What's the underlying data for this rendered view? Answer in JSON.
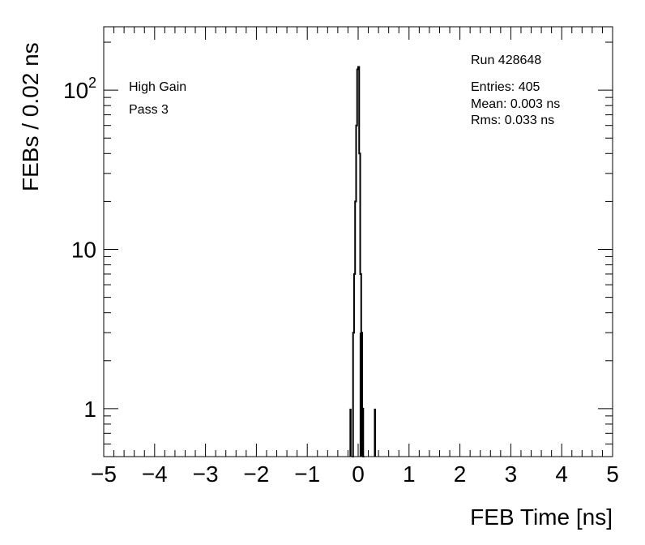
{
  "chart_data": {
    "type": "bar",
    "xlabel": "FEB Time [ns]",
    "ylabel": "FEBs / 0.02 ns",
    "xlim": [
      -5,
      5
    ],
    "ylim": [
      0.5,
      250
    ],
    "ylog": true,
    "bin_width": 0.02,
    "grid": false,
    "legend": "none",
    "x_ticks": [
      -5,
      -4,
      -3,
      -2,
      -1,
      0,
      1,
      2,
      3,
      4,
      5
    ],
    "x_tick_labels": [
      "−5",
      "−4",
      "−3",
      "−2",
      "−1",
      "0",
      "1",
      "2",
      "3",
      "4",
      "5"
    ],
    "y_ticks": [
      1,
      10,
      100
    ],
    "y_tick_labels": [
      "1",
      "10",
      "10",
      "2"
    ],
    "annotations": {
      "gain": "High Gain",
      "pass": "Pass 3",
      "run": "Run 428648",
      "entries": "Entries: 405",
      "mean": "Mean: 0.003 ns",
      "rms": "Rms: 0.033 ns"
    },
    "bins": [
      {
        "x": -0.15,
        "value": 1
      },
      {
        "x": -0.13,
        "value": 0
      },
      {
        "x": -0.11,
        "value": 0
      },
      {
        "x": -0.09,
        "value": 0
      },
      {
        "x": -0.07,
        "value": 0
      },
      {
        "x": -0.05,
        "value": 0
      },
      {
        "x": -0.03,
        "value": 0
      },
      {
        "x": -0.01,
        "value": 0
      },
      {
        "x": 0.01,
        "value": 0
      },
      {
        "x": 0.03,
        "value": 0
      },
      {
        "x": 0.05,
        "value": 3
      },
      {
        "x": 0.07,
        "value": 2
      },
      {
        "x": 0.09,
        "value": 1
      },
      {
        "x": 0.11,
        "value": 0
      },
      {
        "x": 0.13,
        "value": 0
      },
      {
        "x": 0.15,
        "value": 0
      },
      {
        "x": 0.17,
        "value": 0
      },
      {
        "x": 0.19,
        "value": 0
      },
      {
        "x": 0.21,
        "value": 0
      },
      {
        "x": 0.23,
        "value": 0
      },
      {
        "x": 0.25,
        "value": 0
      },
      {
        "x": 0.27,
        "value": 0
      },
      {
        "x": 0.29,
        "value": 0
      },
      {
        "x": 0.31,
        "value": 0
      },
      {
        "x": 0.33,
        "value": 1
      }
    ],
    "outline": [
      {
        "x": -0.11,
        "value": 0
      },
      {
        "x": -0.09,
        "value": 3
      },
      {
        "x": -0.07,
        "value": 7
      },
      {
        "x": -0.05,
        "value": 20
      },
      {
        "x": -0.03,
        "value": 60
      },
      {
        "x": -0.01,
        "value": 135
      },
      {
        "x": 0.01,
        "value": 140
      },
      {
        "x": 0.03,
        "value": 40
      },
      {
        "x": 0.05,
        "value": 7
      },
      {
        "x": 0.07,
        "value": 3
      },
      {
        "x": 0.09,
        "value": 1
      },
      {
        "x": 0.11,
        "value": 0
      }
    ]
  }
}
